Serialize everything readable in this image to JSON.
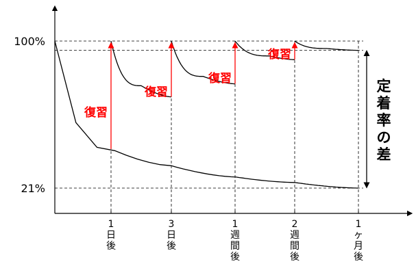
{
  "chart_data": {
    "type": "line",
    "title": "",
    "xlabel": "",
    "ylabel": "",
    "ylim": [
      21,
      100
    ],
    "y_ticks": [
      {
        "value": 100,
        "label": "100%"
      },
      {
        "value": 21,
        "label": "21%"
      }
    ],
    "x_ticks": [
      {
        "x": 1,
        "label": "1日後"
      },
      {
        "x": 3,
        "label": "3日後"
      },
      {
        "x": 7,
        "label": "1週間後"
      },
      {
        "x": 14,
        "label": "2週間後"
      },
      {
        "x": 30,
        "label": "1ヶ月後"
      }
    ],
    "series": [
      {
        "points": [
          [
            0,
            100
          ],
          [
            1,
            42
          ],
          [
            3,
            33
          ],
          [
            7,
            27
          ],
          [
            14,
            24
          ],
          [
            30,
            21
          ]
        ]
      },
      {
        "points": [
          [
            1,
            100
          ],
          [
            2,
            76
          ],
          [
            3,
            70
          ]
        ]
      },
      {
        "points": [
          [
            3,
            100
          ],
          [
            5,
            81
          ],
          [
            7,
            77
          ]
        ]
      },
      {
        "points": [
          [
            7,
            100
          ],
          [
            11,
            92
          ],
          [
            14,
            90
          ]
        ]
      },
      {
        "points": [
          [
            14,
            100
          ],
          [
            22,
            96
          ],
          [
            30,
            95
          ]
        ]
      }
    ],
    "reviews": [
      {
        "x": 1,
        "from": 42,
        "label": "復習"
      },
      {
        "x": 3,
        "from": 70,
        "label": "復習"
      },
      {
        "x": 7,
        "from": 77,
        "label": "復習"
      },
      {
        "x": 14,
        "from": 90,
        "label": "復習"
      }
    ],
    "retention_gap": {
      "from": 21,
      "to": 95,
      "label": "定着率の差"
    },
    "colors": {
      "curve": "#000000",
      "review": "#ff0000",
      "guide": "#000000"
    }
  }
}
